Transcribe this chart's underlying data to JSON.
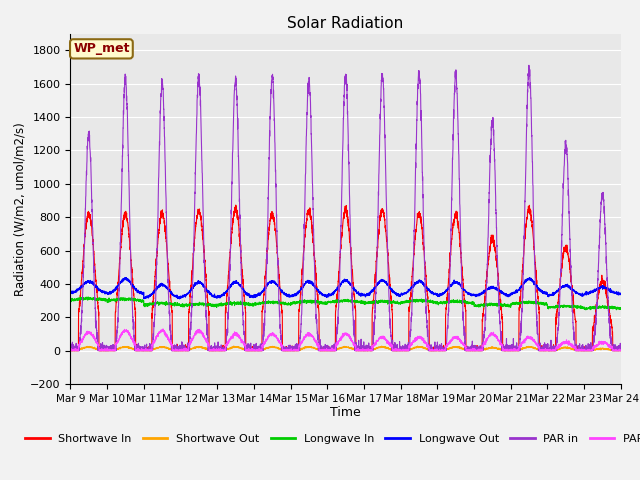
{
  "title": "Solar Radiation",
  "xlabel": "Time",
  "ylabel": "Radiation (W/m2, umol/m2/s)",
  "ylim": [
    -200,
    1900
  ],
  "xlim": [
    0,
    15
  ],
  "yticks": [
    -200,
    0,
    200,
    400,
    600,
    800,
    1000,
    1200,
    1400,
    1600,
    1800
  ],
  "xtick_labels": [
    "Mar 9",
    "Mar 10",
    "Mar 11",
    "Mar 12",
    "Mar 13",
    "Mar 14",
    "Mar 15",
    "Mar 16",
    "Mar 17",
    "Mar 18",
    "Mar 19",
    "Mar 20",
    "Mar 21",
    "Mar 22",
    "Mar 23",
    "Mar 24"
  ],
  "annotation_text": "WP_met",
  "annotation_color": "#8B0000",
  "annotation_bg": "#FFFACD",
  "annotation_border": "#8B6914",
  "series": [
    {
      "label": "Shortwave In",
      "color": "#FF0000"
    },
    {
      "label": "Shortwave Out",
      "color": "#FFA500"
    },
    {
      "label": "Longwave In",
      "color": "#00CC00"
    },
    {
      "label": "Longwave Out",
      "color": "#0000FF"
    },
    {
      "label": "PAR in",
      "color": "#9933CC"
    },
    {
      "label": "PAR out",
      "color": "#FF44FF"
    }
  ],
  "bg_color": "#E8E8E8",
  "grid_color": "#FFFFFF",
  "n_days": 15,
  "pts_per_day": 288,
  "shortwave_in_peaks": [
    820,
    820,
    820,
    840,
    850,
    820,
    840,
    840,
    840,
    820,
    820,
    670,
    850,
    620,
    420
  ],
  "par_in_peaks": [
    1290,
    1620,
    1600,
    1640,
    1620,
    1640,
    1620,
    1650,
    1650,
    1660,
    1650,
    1370,
    1680,
    1230,
    950
  ],
  "par_out_peaks": [
    110,
    120,
    120,
    120,
    100,
    100,
    100,
    100,
    80,
    80,
    80,
    100,
    80,
    50,
    50
  ],
  "shortwave_out_peaks": [
    22,
    22,
    22,
    22,
    22,
    22,
    22,
    22,
    22,
    22,
    22,
    18,
    22,
    18,
    12
  ],
  "longwave_in_base": [
    300,
    295,
    270,
    265,
    270,
    275,
    280,
    285,
    280,
    285,
    280,
    265,
    275,
    255,
    250
  ],
  "longwave_out_base": [
    345,
    340,
    315,
    320,
    320,
    325,
    325,
    330,
    330,
    335,
    330,
    330,
    340,
    330,
    340
  ],
  "longwave_in_day_bump": [
    12,
    15,
    15,
    15,
    15,
    15,
    15,
    15,
    15,
    15,
    15,
    12,
    15,
    12,
    10
  ],
  "longwave_out_day_bump": [
    70,
    90,
    80,
    90,
    90,
    90,
    90,
    90,
    90,
    80,
    80,
    50,
    90,
    60,
    40
  ]
}
